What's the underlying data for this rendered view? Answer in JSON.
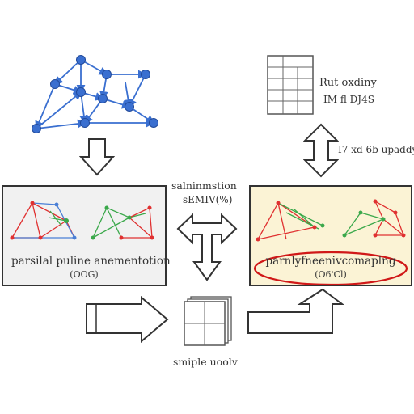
{
  "top_right": {
    "title": "Rut oxdiny",
    "subtitle": "IM fl DJ4S"
  },
  "right_arrow_label": "I7 xd 6b upaddy",
  "center": {
    "title": "salninmstion",
    "subtitle": "sEMIV(%)"
  },
  "left_panel": {
    "title": "parsilal puline anementotion",
    "subtitle": "(OOG)"
  },
  "right_panel": {
    "title": "parnlyfneenivcomaplng",
    "subtitle": "(O6'Cl)"
  },
  "bottom_center_label": "smiple uoolv",
  "colors": {
    "graph_blue": "#3a6fd0",
    "left_panel_bg": "#f1f1f1",
    "right_panel_bg": "#fbf3d5",
    "highlight_ellipse": "#d01818",
    "red_edges": "#e03030",
    "green_edges": "#3aa84a"
  }
}
